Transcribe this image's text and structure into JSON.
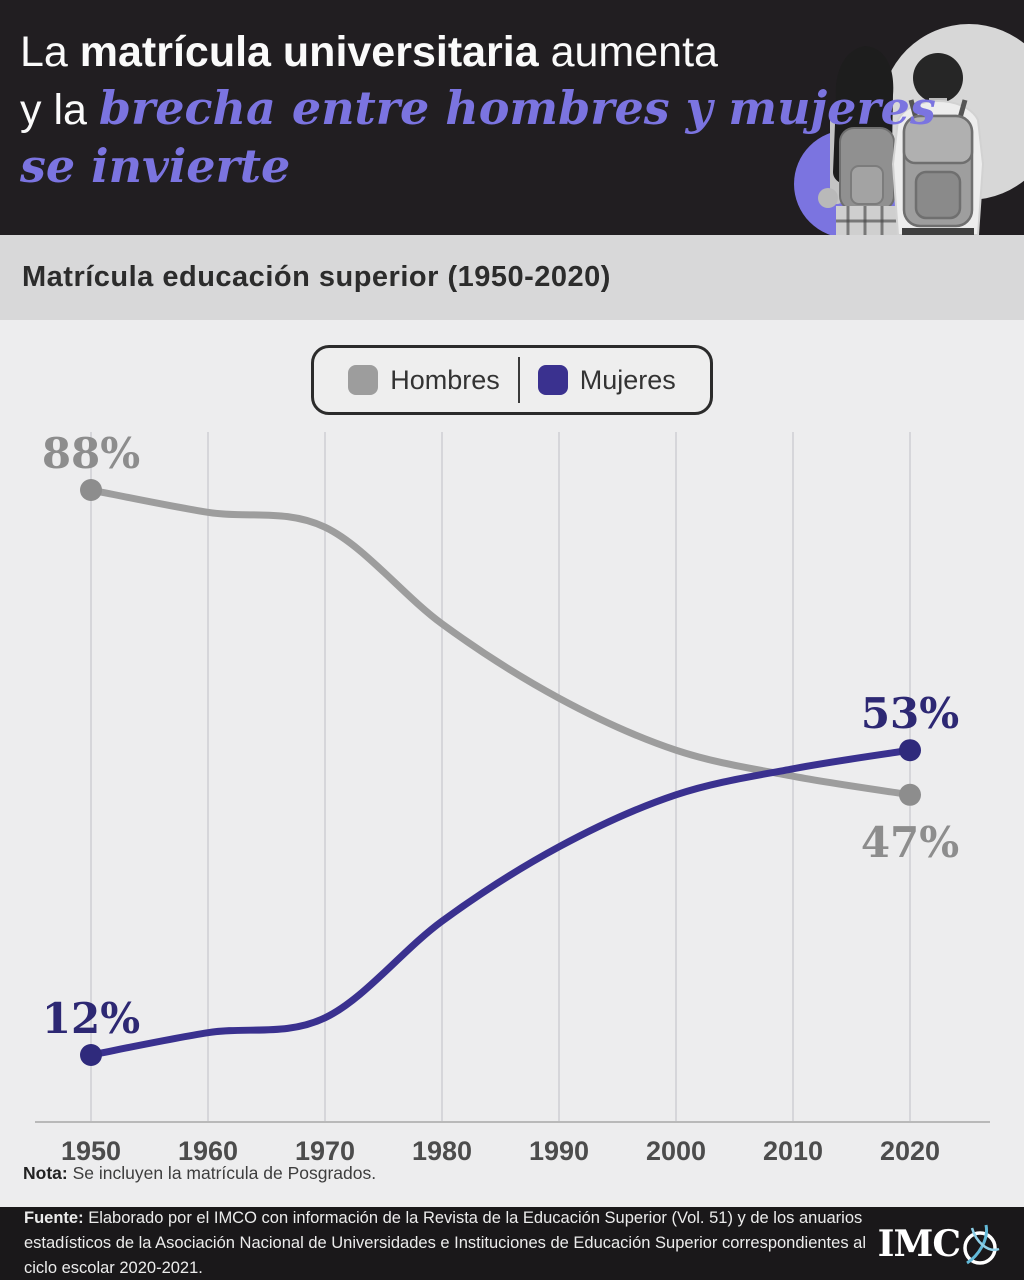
{
  "header": {
    "title_segments": {
      "lead": "La ",
      "bold": "matrícula universitaria",
      "tail": " aumenta",
      "line2_lead": "y la ",
      "line2_accent": "brecha entre hombres y mujeres",
      "line3_accent": "se invierte"
    },
    "accent_color": "#7b74e0"
  },
  "subtitle": "Matrícula educación superior (1950-2020)",
  "chart_data": {
    "type": "line",
    "title": "Matrícula educación superior (1950-2020)",
    "categories": [
      1950,
      1960,
      1970,
      1980,
      1990,
      2000,
      2010,
      2020
    ],
    "series": [
      {
        "name": "Hombres",
        "color": "#9d9d9d",
        "dot_color": "#8d8d8d",
        "values": [
          88,
          85,
          83,
          70,
          60,
          53,
          49.5,
          47
        ]
      },
      {
        "name": "Mujeres",
        "color": "#3a318f",
        "dot_color": "#2f2a7c",
        "values": [
          12,
          15,
          17,
          30,
          40,
          47,
          50.5,
          53
        ]
      }
    ],
    "endpoint_labels": [
      {
        "text": "88%",
        "series": "Hombres",
        "year": 1950,
        "value": 88,
        "placement": "above",
        "color": "#8d8d8d"
      },
      {
        "text": "12%",
        "series": "Mujeres",
        "year": 1950,
        "value": 12,
        "placement": "above",
        "color": "#2d2873"
      },
      {
        "text": "53%",
        "series": "Mujeres",
        "year": 2020,
        "value": 53,
        "placement": "above",
        "color": "#2d2873"
      },
      {
        "text": "47%",
        "series": "Hombres",
        "year": 2020,
        "value": 47,
        "placement": "below",
        "color": "#8d8d8d"
      }
    ],
    "x_tick_labels": [
      "1950",
      "1960",
      "1970",
      "1980",
      "1990",
      "2000",
      "2010",
      "2020"
    ],
    "ylim": [
      0,
      100
    ],
    "grid": "vertical",
    "legend_position": "top-center"
  },
  "note": {
    "label": "Nota:",
    "text": "Se incluyen la matrícula de Posgrados."
  },
  "footer": {
    "source_label": "Fuente:",
    "source_text": "Elaborado por el IMCO con información de la Revista de la Educación Superior (Vol. 51) y de los anuarios estadísticos de la Asociación Nacional de Universidades e Instituciones de Educación Superior correspondientes al ciclo escolar 2020-2021.",
    "logo_imc": "IMC"
  }
}
